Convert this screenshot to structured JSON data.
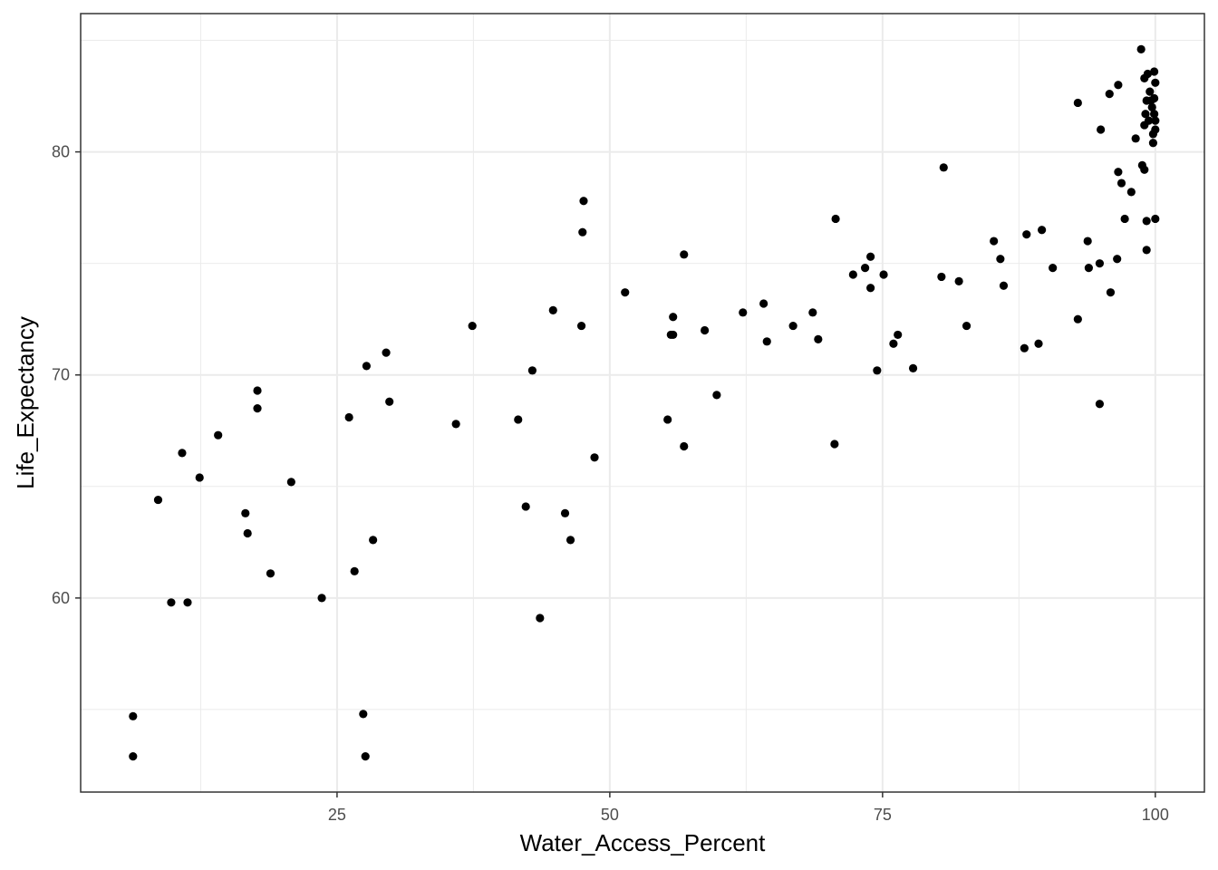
{
  "chart_data": {
    "type": "scatter",
    "title": "",
    "xlabel": "Water_Access_Percent",
    "ylabel": "Life_Expectancy",
    "xlim": [
      1.5,
      104.5
    ],
    "ylim": [
      51.3,
      86.2
    ],
    "x_ticks": [
      25,
      50,
      75,
      100
    ],
    "x_tick_labels": [
      "25",
      "50",
      "75",
      "100"
    ],
    "y_ticks": [
      60,
      70,
      80
    ],
    "y_tick_labels": [
      "60",
      "70",
      "80"
    ],
    "x_minor_ticks": [
      12.5,
      37.5,
      62.5,
      87.5
    ],
    "y_minor_ticks": [
      55,
      65,
      75,
      85
    ],
    "grid": true,
    "point_color": "#000000",
    "points": [
      [
        6.3,
        54.7
      ],
      [
        6.3,
        52.9
      ],
      [
        8.6,
        64.4
      ],
      [
        9.8,
        59.8
      ],
      [
        10.8,
        66.5
      ],
      [
        11.3,
        59.8
      ],
      [
        12.4,
        65.4
      ],
      [
        14.1,
        67.3
      ],
      [
        16.6,
        63.8
      ],
      [
        16.8,
        62.9
      ],
      [
        17.7,
        69.3
      ],
      [
        17.7,
        68.5
      ],
      [
        18.9,
        61.1
      ],
      [
        20.8,
        65.2
      ],
      [
        23.6,
        60.0
      ],
      [
        26.1,
        68.1
      ],
      [
        26.6,
        61.2
      ],
      [
        27.4,
        54.8
      ],
      [
        27.6,
        52.9
      ],
      [
        27.7,
        70.4
      ],
      [
        28.3,
        62.6
      ],
      [
        29.5,
        71.0
      ],
      [
        29.8,
        68.8
      ],
      [
        35.9,
        67.8
      ],
      [
        37.4,
        72.2
      ],
      [
        41.6,
        68.0
      ],
      [
        42.3,
        64.1
      ],
      [
        42.9,
        70.2
      ],
      [
        43.6,
        59.1
      ],
      [
        45.9,
        63.8
      ],
      [
        46.4,
        62.6
      ],
      [
        44.8,
        72.9
      ],
      [
        47.4,
        72.2
      ],
      [
        47.5,
        76.4
      ],
      [
        47.6,
        77.8
      ],
      [
        48.6,
        66.3
      ],
      [
        51.4,
        73.7
      ],
      [
        55.3,
        68.0
      ],
      [
        55.6,
        71.8
      ],
      [
        55.8,
        71.8
      ],
      [
        55.8,
        72.6
      ],
      [
        56.8,
        75.4
      ],
      [
        56.8,
        66.8
      ],
      [
        58.7,
        72.0
      ],
      [
        59.8,
        69.1
      ],
      [
        62.2,
        72.8
      ],
      [
        64.1,
        73.2
      ],
      [
        64.4,
        71.5
      ],
      [
        66.8,
        72.2
      ],
      [
        68.6,
        72.8
      ],
      [
        69.1,
        71.6
      ],
      [
        70.6,
        66.9
      ],
      [
        70.7,
        77.0
      ],
      [
        72.3,
        74.5
      ],
      [
        73.4,
        74.8
      ],
      [
        73.9,
        75.3
      ],
      [
        73.9,
        73.9
      ],
      [
        74.5,
        70.2
      ],
      [
        75.1,
        74.5
      ],
      [
        76.0,
        71.4
      ],
      [
        76.4,
        71.8
      ],
      [
        77.8,
        70.3
      ],
      [
        80.4,
        74.4
      ],
      [
        80.6,
        79.3
      ],
      [
        82.0,
        74.2
      ],
      [
        82.7,
        72.2
      ],
      [
        85.2,
        76.0
      ],
      [
        85.8,
        75.2
      ],
      [
        86.1,
        74.0
      ],
      [
        88.0,
        71.2
      ],
      [
        88.2,
        76.3
      ],
      [
        89.3,
        71.4
      ],
      [
        89.6,
        76.5
      ],
      [
        90.6,
        74.8
      ],
      [
        92.9,
        82.2
      ],
      [
        92.9,
        72.5
      ],
      [
        93.8,
        76.0
      ],
      [
        93.9,
        74.8
      ],
      [
        94.9,
        75.0
      ],
      [
        94.9,
        68.7
      ],
      [
        95.0,
        81.0
      ],
      [
        95.8,
        82.6
      ],
      [
        95.9,
        73.7
      ],
      [
        96.5,
        75.2
      ],
      [
        96.6,
        79.1
      ],
      [
        96.6,
        83.0
      ],
      [
        96.9,
        78.6
      ],
      [
        97.2,
        77.0
      ],
      [
        97.8,
        78.2
      ],
      [
        98.2,
        80.6
      ],
      [
        98.7,
        84.6
      ],
      [
        98.8,
        79.4
      ],
      [
        99.0,
        79.2
      ],
      [
        99.0,
        83.3
      ],
      [
        99.0,
        81.2
      ],
      [
        99.1,
        81.7
      ],
      [
        99.2,
        82.3
      ],
      [
        99.2,
        76.9
      ],
      [
        99.2,
        75.6
      ],
      [
        99.3,
        83.5
      ],
      [
        99.4,
        81.4
      ],
      [
        99.5,
        82.7
      ],
      [
        99.6,
        82.3
      ],
      [
        99.7,
        82.0
      ],
      [
        99.8,
        80.8
      ],
      [
        99.8,
        80.4
      ],
      [
        99.9,
        83.6
      ],
      [
        99.9,
        82.4
      ],
      [
        99.9,
        81.7
      ],
      [
        100.0,
        83.1
      ],
      [
        100.0,
        81.4
      ],
      [
        100.0,
        81.0
      ],
      [
        100.0,
        77.0
      ]
    ]
  }
}
